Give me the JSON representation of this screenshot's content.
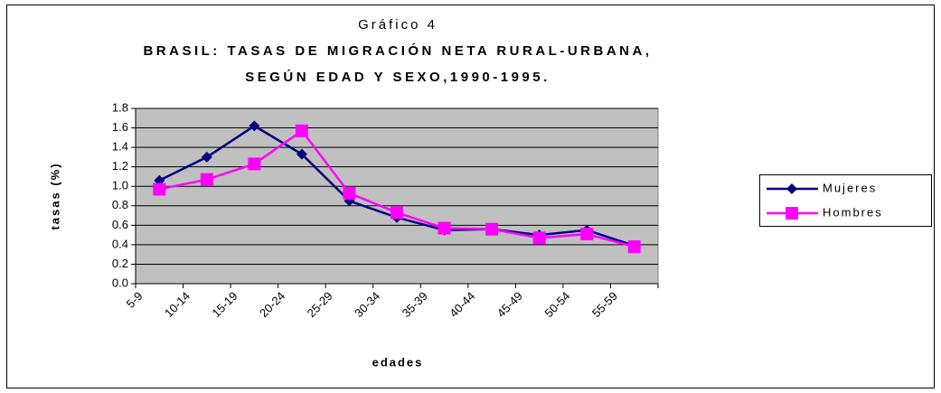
{
  "chart_data": {
    "type": "line",
    "title": "Gráfico 4",
    "subtitle": [
      "BRASIL: TASAS DE MIGRACIÓN NETA RURAL-URBANA,",
      "SEGÚN EDAD Y SEXO,1990-1995."
    ],
    "x_label": "edades",
    "y_label": "tasas (%)",
    "categories": [
      "5-9",
      "10-14",
      "15-19",
      "20-24",
      "25-29",
      "30-34",
      "35-39",
      "40-44",
      "45-49",
      "50-54",
      "55-59"
    ],
    "series": [
      {
        "name": "Mujeres",
        "color": "#000080",
        "marker": "diamond",
        "values": [
          1.06,
          1.3,
          1.62,
          1.33,
          0.85,
          0.68,
          0.55,
          0.56,
          0.5,
          0.55,
          0.39
        ]
      },
      {
        "name": "Hombres",
        "color": "#ff00ff",
        "marker": "square",
        "values": [
          0.97,
          1.07,
          1.23,
          1.57,
          0.93,
          0.73,
          0.57,
          0.56,
          0.47,
          0.51,
          0.38
        ]
      }
    ],
    "ylim": [
      0,
      1.8
    ],
    "yticks": [
      {
        "value": 0,
        "label": "0.0"
      },
      0.2,
      0.4,
      0.6,
      0.8,
      {
        "value": 1,
        "label": "1.0"
      },
      1.2,
      1.4,
      1.6,
      1.8
    ],
    "grid": true,
    "legend": "right"
  }
}
